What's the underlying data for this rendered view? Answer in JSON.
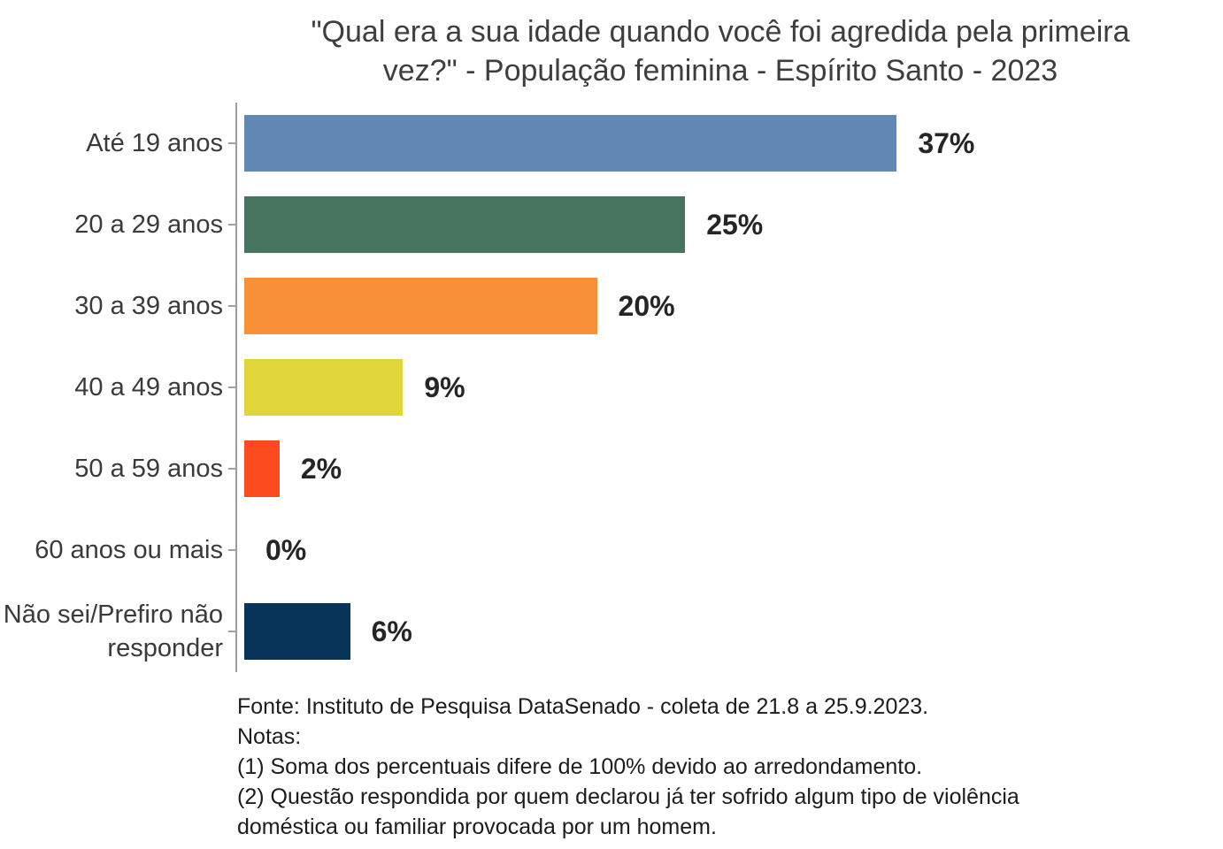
{
  "header": {
    "title_lines": [
      "\"Qual era a sua idade quando você foi agredida pela primeira",
      "vez?\" - População feminina - Espírito Santo - 2023"
    ]
  },
  "chart_data": {
    "type": "bar",
    "orientation": "horizontal",
    "title": "\"Qual era a sua idade quando você foi agredida pela primeira vez?\" - População feminina - Espírito Santo - 2023",
    "categories": [
      "Até 19 anos",
      "20 a 29 anos",
      "30 a 39 anos",
      "40 a 49 anos",
      "50 a 59 anos",
      "60 anos ou mais",
      "Não sei/Prefiro não responder"
    ],
    "values": [
      37,
      25,
      20,
      9,
      2,
      0,
      6
    ],
    "value_labels": [
      "37%",
      "25%",
      "20%",
      "9%",
      "2%",
      "0%",
      "6%"
    ],
    "bar_colors": [
      "#6289B5",
      "#47745F",
      "#F89038",
      "#E0D63A",
      "#FB4A1D",
      null,
      "#09345A"
    ],
    "unit": "percent",
    "xlim": [
      0,
      55.5
    ],
    "grid": false,
    "legend": false,
    "axis_color": "#9E9E9E"
  },
  "notes": {
    "lines": [
      "Fonte: Instituto de Pesquisa DataSenado - coleta de 21.8 a 25.9.2023.",
      "Notas:",
      "(1) Soma dos percentuais difere de 100% devido ao arredondamento.",
      "(2) Questão respondida por quem declarou já ter sofrido algum tipo de violência",
      "doméstica ou familiar provocada por um homem."
    ]
  }
}
